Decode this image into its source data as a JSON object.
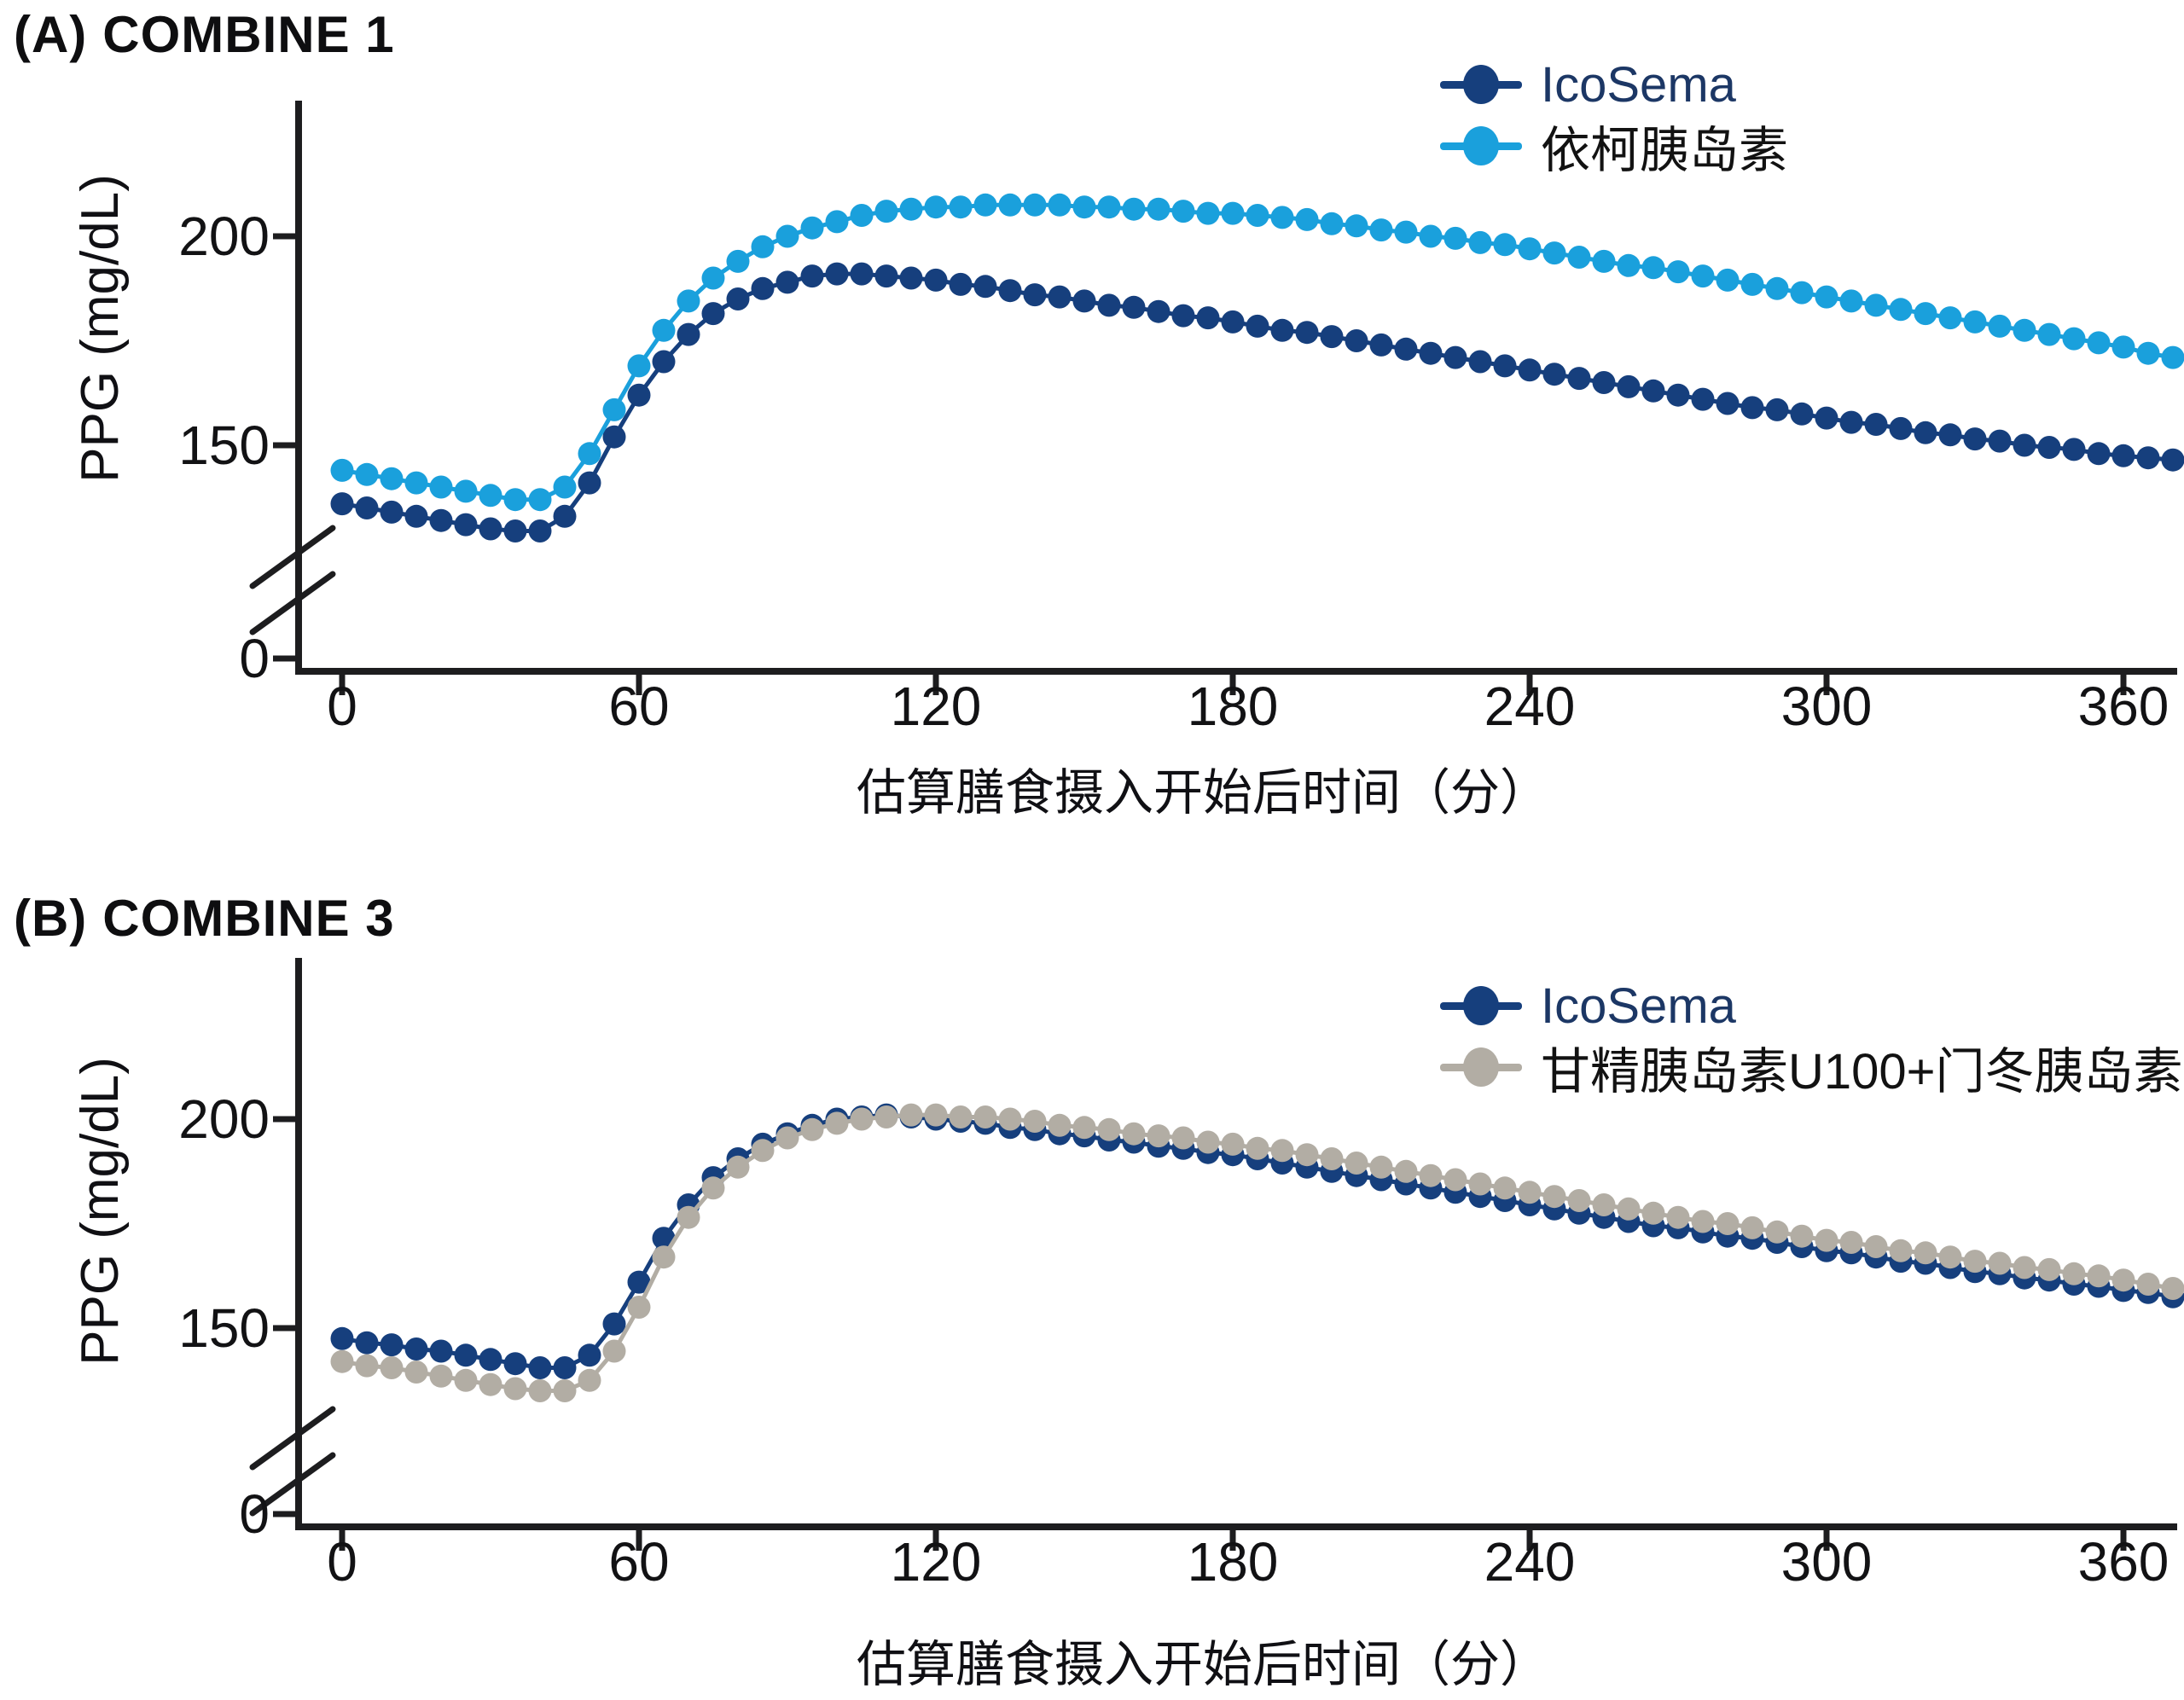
{
  "page": {
    "background": "#ffffff",
    "axis_color": "#1d1d1f",
    "text_color": "#111111"
  },
  "chart_data": [
    {
      "id": "combine1",
      "type": "line",
      "title_prefix": "(A)",
      "title": "COMBINE 1",
      "xlabel": "估算膳食摄入开始后时间（分）",
      "ylabel": "PPG (mg/dL)",
      "x_axis": {
        "ticks": [
          0,
          60,
          120,
          180,
          240,
          300,
          360
        ],
        "unit_minutes": true
      },
      "y_axis": {
        "ticks": [
          200,
          150
        ],
        "zero_label": "0",
        "broken_axis": true,
        "display_top": 232
      },
      "xlim": [
        0,
        370
      ],
      "x": [
        0,
        5,
        10,
        15,
        20,
        25,
        30,
        35,
        40,
        45,
        50,
        55,
        60,
        65,
        70,
        75,
        80,
        85,
        90,
        95,
        100,
        105,
        110,
        115,
        120,
        125,
        130,
        135,
        140,
        145,
        150,
        155,
        160,
        165,
        170,
        175,
        180,
        185,
        190,
        195,
        200,
        205,
        210,
        215,
        220,
        225,
        230,
        235,
        240,
        245,
        250,
        255,
        260,
        265,
        270,
        275,
        280,
        285,
        290,
        295,
        300,
        305,
        310,
        315,
        320,
        325,
        330,
        335,
        340,
        345,
        350,
        355,
        360,
        365,
        370
      ],
      "series": [
        {
          "name": "IcoSema",
          "color": "#163f7d",
          "label_color": "#1c3765",
          "values": [
            136,
            135,
            134,
            133,
            132,
            131,
            130,
            129.5,
            129.5,
            133,
            141,
            152,
            162,
            170,
            176.5,
            181.5,
            185,
            187.5,
            189,
            190.5,
            191,
            191,
            190.5,
            190,
            189.5,
            188.5,
            188,
            187,
            186,
            185.5,
            184.5,
            183.5,
            183,
            182,
            181,
            180.5,
            179.5,
            178.5,
            177.5,
            177,
            176,
            175,
            174,
            173,
            172,
            171,
            170,
            169,
            168,
            167,
            166,
            165,
            164,
            163,
            162,
            161,
            160,
            159,
            158.5,
            157.5,
            156.5,
            155.5,
            155,
            154,
            153,
            152.5,
            151.5,
            151,
            150,
            149.5,
            149,
            148,
            147.5,
            147,
            146.5
          ]
        },
        {
          "name": "依柯胰岛素",
          "color": "#1aa0dc",
          "label_color": "#121212",
          "values": [
            144,
            143,
            142,
            141,
            140,
            139,
            138,
            137,
            137,
            140,
            148,
            158.5,
            169,
            177.5,
            184.5,
            190,
            194,
            197.5,
            200,
            202,
            203.5,
            205,
            206,
            206.5,
            207,
            207,
            207.5,
            207.5,
            207.5,
            207.5,
            207,
            207,
            206.5,
            206.5,
            206,
            205.5,
            205.5,
            205,
            204.5,
            204,
            203,
            202.5,
            201.5,
            201,
            200,
            199.5,
            198.5,
            198,
            197,
            196,
            195,
            194,
            193,
            192.5,
            191.5,
            190.5,
            189.5,
            188.5,
            187.5,
            186.5,
            185.5,
            184.5,
            183.5,
            182.5,
            181.5,
            180.5,
            179.5,
            178.5,
            177.5,
            176.5,
            175.5,
            174.5,
            173.5,
            172,
            171
          ]
        }
      ]
    },
    {
      "id": "combine3",
      "type": "line",
      "title_prefix": "(B)",
      "title": "COMBINE 3",
      "xlabel": "估算膳食摄入开始后时间（分）",
      "ylabel": "PPG (mg/dL)",
      "x_axis": {
        "ticks": [
          0,
          60,
          120,
          180,
          240,
          300,
          360
        ],
        "unit_minutes": true
      },
      "y_axis": {
        "ticks": [
          200,
          150
        ],
        "zero_label": "0",
        "broken_axis": true,
        "display_top": 232
      },
      "xlim": [
        0,
        370
      ],
      "x": [
        0,
        5,
        10,
        15,
        20,
        25,
        30,
        35,
        40,
        45,
        50,
        55,
        60,
        65,
        70,
        75,
        80,
        85,
        90,
        95,
        100,
        105,
        110,
        115,
        120,
        125,
        130,
        135,
        140,
        145,
        150,
        155,
        160,
        165,
        170,
        175,
        180,
        185,
        190,
        195,
        200,
        205,
        210,
        215,
        220,
        225,
        230,
        235,
        240,
        245,
        250,
        255,
        260,
        265,
        270,
        275,
        280,
        285,
        290,
        295,
        300,
        305,
        310,
        315,
        320,
        325,
        330,
        335,
        340,
        345,
        350,
        355,
        360,
        365,
        370
      ],
      "series": [
        {
          "name": "IcoSema",
          "color": "#163f7d",
          "label_color": "#1c3765",
          "values": [
            147.5,
            146.5,
            146,
            145,
            144.5,
            143.5,
            142.5,
            141.5,
            140.5,
            140.5,
            143.5,
            151,
            161,
            171.5,
            179.5,
            186,
            190.5,
            194,
            196.5,
            198.5,
            200,
            200.5,
            201,
            200.5,
            200,
            199.5,
            199,
            198,
            197.5,
            196.5,
            196,
            195,
            194.5,
            193.5,
            193,
            192,
            191.5,
            190.5,
            189.5,
            188.5,
            187.5,
            186.5,
            185.5,
            184.5,
            183.5,
            182.5,
            181.5,
            180.5,
            179.5,
            178.5,
            177.5,
            176.5,
            175.5,
            174.5,
            174,
            173,
            172,
            171.5,
            170.5,
            169.5,
            168.5,
            168,
            167,
            166,
            165.5,
            164.5,
            163.5,
            163,
            162,
            161.5,
            160.5,
            160,
            159,
            158.5,
            157.5
          ]
        },
        {
          "name": "甘精胰岛素U100+门冬胰岛素",
          "color": "#b2ada4",
          "label_color": "#121212",
          "values": [
            142,
            141,
            140.5,
            139.5,
            138.5,
            137.5,
            136.5,
            135.5,
            135,
            135,
            137.5,
            144.5,
            155,
            167,
            176.5,
            183.5,
            188.5,
            192.5,
            195.5,
            197.5,
            199,
            200,
            200.5,
            201,
            201,
            200.5,
            200.5,
            200,
            199.5,
            198.5,
            198,
            197.5,
            196.5,
            196,
            195.5,
            194.5,
            194,
            193,
            192.5,
            191.5,
            190.5,
            189.5,
            188.5,
            187.5,
            186.5,
            185.5,
            184.5,
            183.5,
            182.5,
            181.5,
            180.5,
            179.5,
            178.5,
            177.5,
            176.5,
            175.5,
            175,
            174,
            173,
            172,
            171,
            170.5,
            169.5,
            168.5,
            168,
            167,
            166,
            165.5,
            164.5,
            164,
            163,
            162.5,
            161.5,
            160.5,
            159.5
          ]
        }
      ]
    }
  ]
}
